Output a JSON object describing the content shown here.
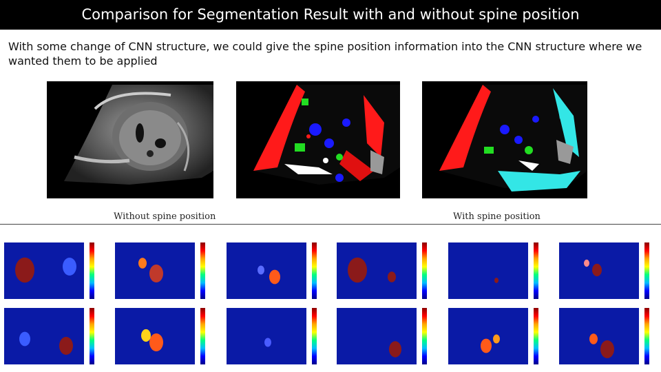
{
  "slide": {
    "title": "Comparison for Segmentation Result with and without spine position",
    "body": "With some change of CNN structure, we could give the spine position information into the CNN structure where we wanted them to be applied",
    "caption_left": "Without spine position",
    "caption_right": "With spine position"
  },
  "figures": {
    "ultrasound": "ultrasound-image",
    "seg_without": "segmentation-without-spine",
    "seg_with": "segmentation-with-spine",
    "heatmap_rows": 2,
    "heatmap_cols": 6
  },
  "colors": {
    "title_bg": "#000000",
    "title_fg": "#ffffff",
    "heatmap_bg": "#0a1aa6",
    "seg_red": "#ff0000",
    "seg_green": "#22dd22",
    "seg_cyan": "#33e6e6",
    "seg_blue": "#1a1aff"
  }
}
